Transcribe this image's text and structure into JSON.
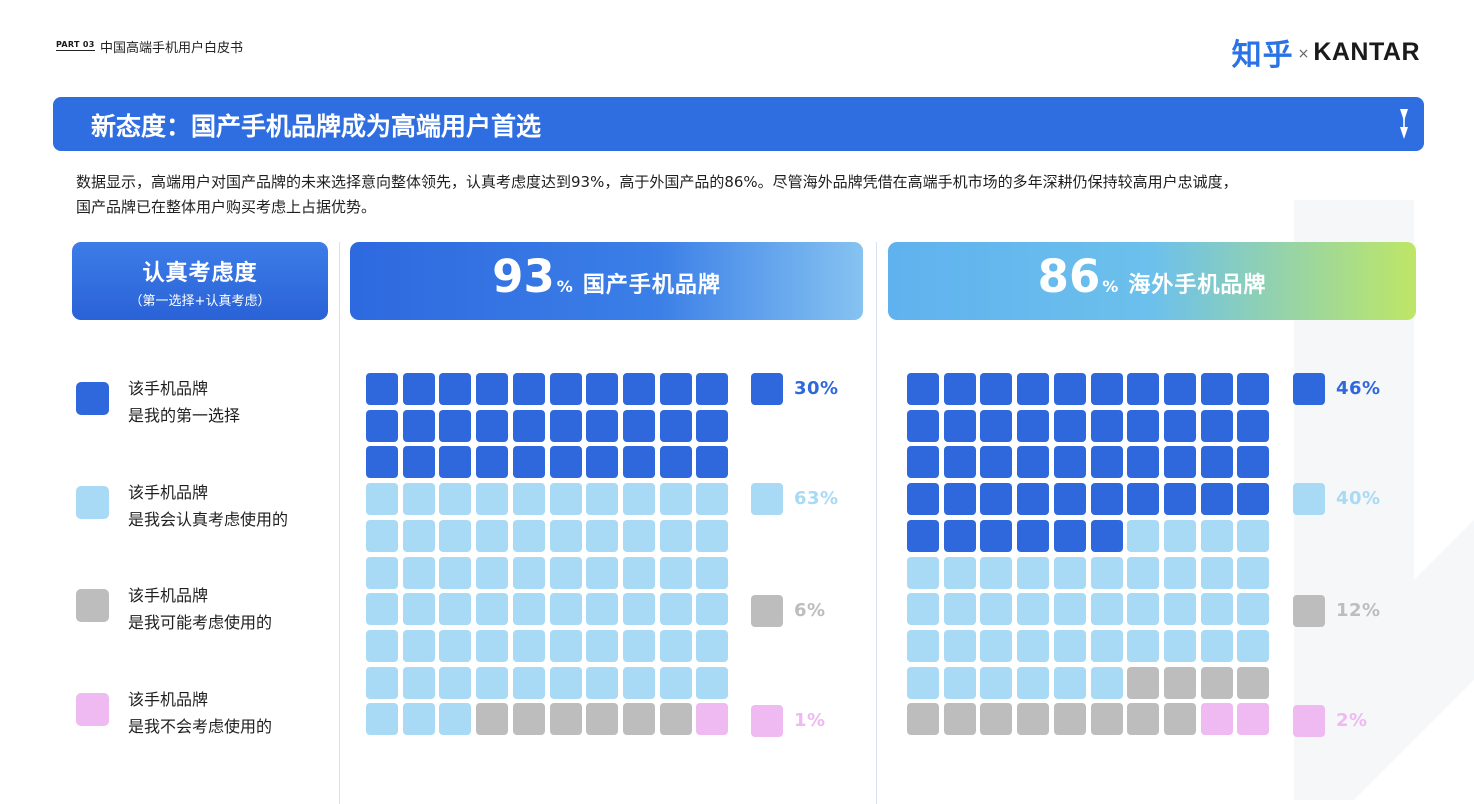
{
  "header": {
    "part": "PART 03",
    "report_title": "中国高端手机用户白皮书",
    "logo_zhihu": "知乎",
    "logo_x": "×",
    "logo_kantar": "KANTAR"
  },
  "title": "新态度：国产手机品牌成为高端用户首选",
  "description_line1": "数据显示，高端用户对国产品牌的未来选择意向整体领先，认真考虑度达到93%，高于外国产品的86%。尽管海外品牌凭借在高端手机市场的多年深耕仍保持较高用户忠诚度，",
  "description_line2": "国产品牌已在整体用户购买考虑上占据优势。",
  "legend_header": {
    "title": "认真考虑度",
    "subtitle": "（第一选择+认真考虑）"
  },
  "legend": [
    {
      "line1": "该手机品牌",
      "line2": "是我的第一选择",
      "color": "#2f68dd"
    },
    {
      "line1": "该手机品牌",
      "line2": "是我会认真考虑使用的",
      "color": "#a9daf5"
    },
    {
      "line1": "该手机品牌",
      "line2": "是我可能考虑使用的",
      "color": "#bdbdbd"
    },
    {
      "line1": "该手机品牌",
      "line2": "是我不会考虑使用的",
      "color": "#efb9f1"
    }
  ],
  "colors": {
    "first_choice": "#2f68dd",
    "serious": "#a9daf5",
    "maybe": "#bdbdbd",
    "not": "#efb9f1",
    "label_first": "#2f68dd",
    "label_serious": "#a9daf5",
    "label_maybe": "#bdbdbd",
    "label_not": "#efb9f1"
  },
  "chart_data": [
    {
      "type": "waffle",
      "title_value": "93",
      "title_unit": "%",
      "title_name": "国产手机品牌",
      "categories": [
        "是我的第一选择",
        "是我会认真考虑使用的",
        "是我可能考虑使用的",
        "是我不会考虑使用的"
      ],
      "values": [
        30,
        63,
        6,
        1
      ],
      "labels": [
        "30%",
        "63%",
        "6%",
        "1%"
      ]
    },
    {
      "type": "waffle",
      "title_value": "86",
      "title_unit": "%",
      "title_name": "海外手机品牌",
      "categories": [
        "是我的第一选择",
        "是我会认真考虑使用的",
        "是我可能考虑使用的",
        "是我不会考虑使用的"
      ],
      "values": [
        46,
        40,
        12,
        2
      ],
      "labels": [
        "46%",
        "40%",
        "12%",
        "2%"
      ]
    }
  ]
}
